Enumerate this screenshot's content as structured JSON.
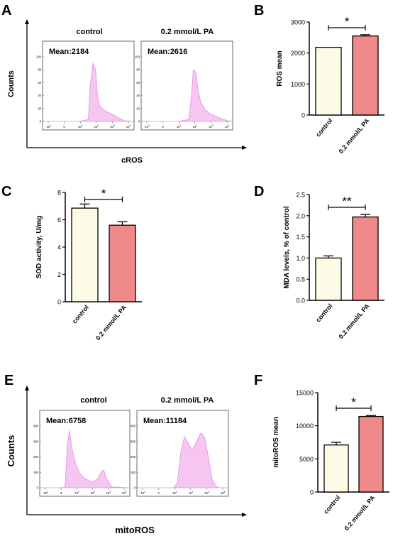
{
  "colors": {
    "control_bar": "#fdfbe6",
    "pa_bar": "#f08a8a",
    "histogram_fill": "#f6c6f1",
    "histogram_stroke": "#e48ee0",
    "axis": "#000000"
  },
  "panels": {
    "A": {
      "letter": "A",
      "axis_y_label": "Counts",
      "axis_x_label": "cROS",
      "subplots": [
        {
          "header": "control",
          "mean_label": "Mean:2184",
          "y_ticks": [
            "100",
            "80",
            "60",
            "40",
            "20",
            "0"
          ],
          "x_ticks": [
            "-10^1",
            "0",
            "10^1",
            "10^2",
            "10^3",
            "10^4"
          ]
        },
        {
          "header": "0.2 mmol/L PA",
          "mean_label": "Mean:2616",
          "y_ticks": [
            "100",
            "80",
            "60",
            "40",
            "20",
            "0"
          ],
          "x_ticks": [
            "-10^1",
            "0",
            "10^1",
            "10^2",
            "10^3",
            "10^4"
          ]
        }
      ]
    },
    "B": {
      "letter": "B",
      "ylabel": "ROS mean",
      "ticks": [
        "3000",
        "2000",
        "1000",
        "0"
      ],
      "categories": [
        "control",
        "0.2 mmol/L PA"
      ],
      "significance": "*"
    },
    "C": {
      "letter": "C",
      "ylabel": "SOD activity, U/mg",
      "ticks": [
        "8",
        "6",
        "4",
        "2",
        "0"
      ],
      "categories": [
        "control",
        "0.2 mmol/L PA"
      ],
      "significance": "*"
    },
    "D": {
      "letter": "D",
      "ylabel": "MDA levels, % of control",
      "ticks": [
        "2.5",
        "2.0",
        "1.5",
        "1.0",
        "0.5",
        "0.0"
      ],
      "categories": [
        "control",
        "0.2 mmol/L PA"
      ],
      "significance": "**"
    },
    "E": {
      "letter": "E",
      "axis_y_label": "Counts",
      "axis_x_label": "mitoROS",
      "subplots": [
        {
          "header": "control",
          "mean_label": "Mean:6758",
          "y_ticks": [
            "400",
            "300",
            "200",
            "100",
            "0"
          ],
          "x_ticks": [
            "-10^2",
            "0",
            "10^2",
            "10^3",
            "10^4",
            "10^5"
          ]
        },
        {
          "header": "0.2 mmol/L PA",
          "mean_label": "Mean:11184",
          "y_ticks": [
            "400",
            "300",
            "200",
            "100",
            "0"
          ],
          "x_ticks": [
            "-10^2",
            "0",
            "10^2",
            "10^3",
            "10^4",
            "10^5"
          ]
        }
      ]
    },
    "F": {
      "letter": "F",
      "ylabel": "mitoROS mean",
      "ticks": [
        "15000",
        "10000",
        "5000",
        "0"
      ],
      "categories": [
        "control",
        "0.2 mmol/L PA"
      ],
      "significance": "*"
    }
  },
  "chart_data": [
    {
      "panel": "A",
      "type": "area",
      "title": "",
      "xlabel": "cROS",
      "ylabel": "Counts",
      "series": [
        {
          "name": "control",
          "mean": 2184,
          "x": [
            0,
            0.2,
            0.4,
            0.5,
            0.52,
            0.55,
            0.58,
            0.6,
            0.62,
            0.65,
            0.7,
            0.75,
            0.8,
            0.85,
            0.9,
            1
          ],
          "values": [
            0,
            0,
            0,
            3,
            55,
            90,
            80,
            40,
            25,
            20,
            15,
            12,
            8,
            4,
            1,
            0
          ]
        },
        {
          "name": "0.2 mmol/L PA",
          "mean": 2616,
          "x": [
            0,
            0.2,
            0.4,
            0.52,
            0.55,
            0.57,
            0.6,
            0.62,
            0.65,
            0.7,
            0.75,
            0.8,
            0.85,
            0.9,
            0.95,
            1
          ],
          "values": [
            0,
            0,
            0,
            3,
            40,
            80,
            75,
            50,
            30,
            18,
            12,
            9,
            6,
            3,
            1,
            0
          ]
        }
      ]
    },
    {
      "panel": "B",
      "type": "bar",
      "title": "",
      "xlabel": "",
      "ylabel": "ROS mean",
      "ylim": [
        0,
        3000
      ],
      "categories": [
        "control",
        "0.2 mmol/L PA"
      ],
      "values": [
        2184,
        2550
      ],
      "errors": [
        0,
        40
      ]
    },
    {
      "panel": "C",
      "type": "bar",
      "title": "",
      "xlabel": "",
      "ylabel": "SOD activity, U/mg",
      "ylim": [
        0,
        8
      ],
      "categories": [
        "control",
        "0.2 mmol/L PA"
      ],
      "values": [
        6.85,
        5.6
      ],
      "errors": [
        0.3,
        0.25
      ]
    },
    {
      "panel": "D",
      "type": "bar",
      "title": "",
      "xlabel": "",
      "ylabel": "MDA levels, % of control",
      "ylim": [
        0,
        2.5
      ],
      "categories": [
        "control",
        "0.2 mmol/L PA"
      ],
      "values": [
        1.0,
        1.97
      ],
      "errors": [
        0.05,
        0.06
      ]
    },
    {
      "panel": "E",
      "type": "area",
      "title": "",
      "xlabel": "mitoROS",
      "ylabel": "Counts",
      "series": [
        {
          "name": "control",
          "mean": 6758,
          "x": [
            0,
            0.2,
            0.28,
            0.31,
            0.33,
            0.36,
            0.4,
            0.45,
            0.5,
            0.55,
            0.6,
            0.64,
            0.68,
            0.71,
            0.74,
            0.8,
            1
          ],
          "values": [
            0,
            0,
            2,
            300,
            370,
            250,
            150,
            90,
            60,
            45,
            40,
            55,
            100,
            115,
            60,
            5,
            0
          ]
        },
        {
          "name": "0.2 mmol/L PA",
          "mean": 11184,
          "x": [
            0,
            0.2,
            0.4,
            0.44,
            0.48,
            0.52,
            0.56,
            0.6,
            0.63,
            0.66,
            0.7,
            0.74,
            0.78,
            0.82,
            0.86,
            0.9,
            1
          ],
          "values": [
            0,
            0,
            0,
            30,
            230,
            330,
            290,
            250,
            270,
            310,
            355,
            330,
            200,
            60,
            10,
            0,
            0
          ]
        }
      ]
    },
    {
      "panel": "F",
      "type": "bar",
      "title": "",
      "xlabel": "",
      "ylabel": "mitoROS mean",
      "ylim": [
        0,
        15000
      ],
      "categories": [
        "control",
        "0.2 mmol/L PA"
      ],
      "values": [
        7100,
        11400
      ],
      "errors": [
        400,
        150
      ]
    }
  ]
}
